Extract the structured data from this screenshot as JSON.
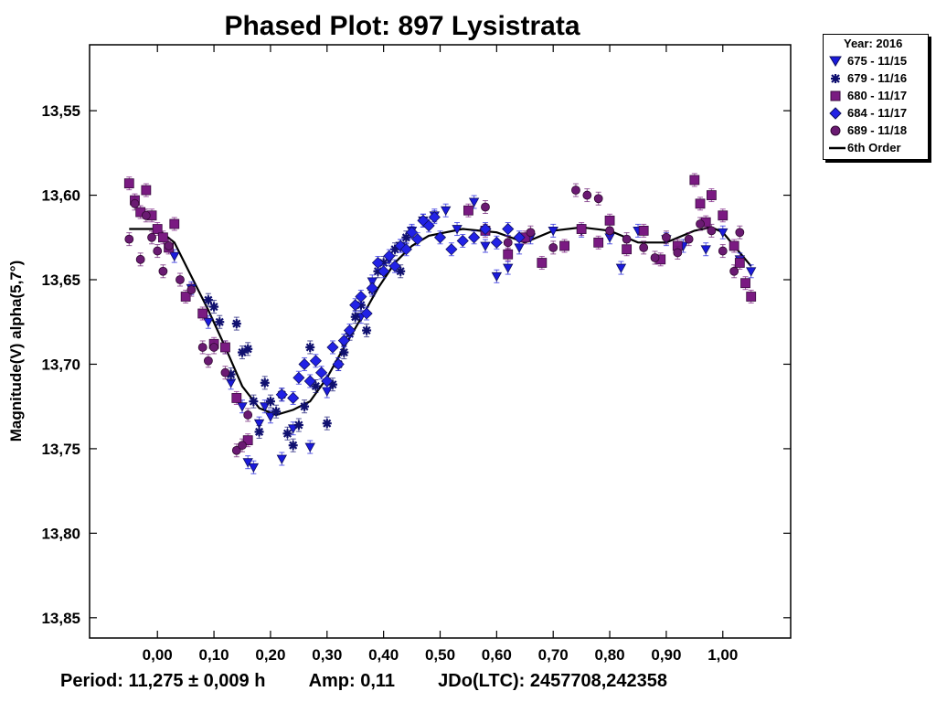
{
  "chart_data": {
    "type": "scatter",
    "title": "Phased Plot: 897 Lysistrata",
    "xlabel": "",
    "ylabel": "Magnitude(V) alpha(5,7°)",
    "xlim": [
      -0.12,
      1.12
    ],
    "ylim": [
      13.511,
      13.862
    ],
    "y_inverted": true,
    "x_ticks": [
      "0,00",
      "0,10",
      "0,20",
      "0,30",
      "0,40",
      "0,50",
      "0,60",
      "0,70",
      "0,80",
      "0,90",
      "1,00"
    ],
    "x_tick_values": [
      0,
      0.1,
      0.2,
      0.3,
      0.4,
      0.5,
      0.6,
      0.7,
      0.8,
      0.9,
      1.0
    ],
    "y_ticks": [
      "13,55",
      "13,60",
      "13,65",
      "13,70",
      "13,75",
      "13,80",
      "13,85"
    ],
    "y_tick_values": [
      13.55,
      13.6,
      13.65,
      13.7,
      13.75,
      13.8,
      13.85
    ],
    "legend": {
      "title": "Year: 2016",
      "entries": [
        {
          "label": "675 - 11/15",
          "marker": "triangle-down",
          "color": "#1a1adc"
        },
        {
          "label": "679 - 11/16",
          "marker": "asterisk",
          "color": "#101070"
        },
        {
          "label": "680 - 11/17",
          "marker": "square",
          "color": "#7a1a82"
        },
        {
          "label": "684 - 11/17",
          "marker": "diamond",
          "color": "#2222e6"
        },
        {
          "label": "689 - 11/18",
          "marker": "circle",
          "color": "#6a1a72"
        },
        {
          "label": "6th Order",
          "marker": "line",
          "color": "#000000"
        }
      ]
    },
    "series": [
      {
        "name": "675 - 11/15",
        "marker": "triangle-down",
        "color": "#1a1adc",
        "points": [
          [
            0.03,
            13.636
          ],
          [
            0.06,
            13.655
          ],
          [
            0.09,
            13.675
          ],
          [
            0.13,
            13.711
          ],
          [
            0.15,
            13.725
          ],
          [
            0.16,
            13.758
          ],
          [
            0.17,
            13.761
          ],
          [
            0.18,
            13.735
          ],
          [
            0.19,
            13.725
          ],
          [
            0.2,
            13.731
          ],
          [
            0.22,
            13.756
          ],
          [
            0.24,
            13.738
          ],
          [
            0.27,
            13.749
          ],
          [
            0.3,
            13.716
          ],
          [
            0.33,
            13.688
          ],
          [
            0.36,
            13.672
          ],
          [
            0.38,
            13.651
          ],
          [
            0.41,
            13.638
          ],
          [
            0.43,
            13.63
          ],
          [
            0.45,
            13.621
          ],
          [
            0.47,
            13.615
          ],
          [
            0.49,
            13.612
          ],
          [
            0.51,
            13.609
          ],
          [
            0.53,
            13.62
          ],
          [
            0.56,
            13.604
          ],
          [
            0.58,
            13.63
          ],
          [
            0.6,
            13.648
          ],
          [
            0.62,
            13.643
          ],
          [
            0.64,
            13.631
          ],
          [
            0.66,
            13.625
          ],
          [
            0.7,
            13.621
          ],
          [
            0.75,
            13.621
          ],
          [
            0.8,
            13.625
          ],
          [
            0.82,
            13.643
          ],
          [
            0.85,
            13.621
          ],
          [
            0.9,
            13.626
          ],
          [
            0.93,
            13.63
          ],
          [
            0.97,
            13.632
          ],
          [
            1.0,
            13.622
          ],
          [
            1.03,
            13.638
          ],
          [
            1.05,
            13.645
          ]
        ]
      },
      {
        "name": "679 - 11/16",
        "marker": "asterisk",
        "color": "#101070",
        "points": [
          [
            0.09,
            13.662
          ],
          [
            0.1,
            13.666
          ],
          [
            0.11,
            13.675
          ],
          [
            0.12,
            13.69
          ],
          [
            0.13,
            13.706
          ],
          [
            0.14,
            13.676
          ],
          [
            0.15,
            13.693
          ],
          [
            0.16,
            13.691
          ],
          [
            0.17,
            13.722
          ],
          [
            0.18,
            13.74
          ],
          [
            0.19,
            13.711
          ],
          [
            0.2,
            13.722
          ],
          [
            0.21,
            13.728
          ],
          [
            0.22,
            13.718
          ],
          [
            0.23,
            13.741
          ],
          [
            0.24,
            13.748
          ],
          [
            0.25,
            13.736
          ],
          [
            0.26,
            13.725
          ],
          [
            0.27,
            13.69
          ],
          [
            0.28,
            13.713
          ],
          [
            0.3,
            13.735
          ],
          [
            0.31,
            13.712
          ],
          [
            0.32,
            13.7
          ],
          [
            0.33,
            13.693
          ],
          [
            0.34,
            13.682
          ],
          [
            0.35,
            13.672
          ],
          [
            0.36,
            13.665
          ],
          [
            0.37,
            13.68
          ],
          [
            0.38,
            13.656
          ],
          [
            0.39,
            13.645
          ],
          [
            0.4,
            13.64
          ],
          [
            0.42,
            13.632
          ],
          [
            0.43,
            13.645
          ],
          [
            0.44,
            13.625
          ]
        ]
      },
      {
        "name": "680 - 11/17",
        "marker": "square",
        "color": "#7a1a82",
        "points": [
          [
            -0.05,
            13.593
          ],
          [
            -0.04,
            13.603
          ],
          [
            -0.03,
            13.61
          ],
          [
            -0.02,
            13.597
          ],
          [
            -0.01,
            13.612
          ],
          [
            0.0,
            13.62
          ],
          [
            0.01,
            13.625
          ],
          [
            0.02,
            13.631
          ],
          [
            0.03,
            13.617
          ],
          [
            0.05,
            13.66
          ],
          [
            0.08,
            13.67
          ],
          [
            0.1,
            13.688
          ],
          [
            0.12,
            13.69
          ],
          [
            0.14,
            13.72
          ],
          [
            0.16,
            13.745
          ],
          [
            0.55,
            13.609
          ],
          [
            0.58,
            13.621
          ],
          [
            0.62,
            13.635
          ],
          [
            0.65,
            13.625
          ],
          [
            0.68,
            13.64
          ],
          [
            0.72,
            13.63
          ],
          [
            0.75,
            13.62
          ],
          [
            0.78,
            13.628
          ],
          [
            0.8,
            13.615
          ],
          [
            0.83,
            13.632
          ],
          [
            0.86,
            13.621
          ],
          [
            0.89,
            13.638
          ],
          [
            0.92,
            13.63
          ],
          [
            0.95,
            13.591
          ],
          [
            0.96,
            13.605
          ],
          [
            0.97,
            13.616
          ],
          [
            0.98,
            13.6
          ],
          [
            1.0,
            13.612
          ],
          [
            1.02,
            13.63
          ],
          [
            1.03,
            13.64
          ],
          [
            1.04,
            13.652
          ],
          [
            1.05,
            13.66
          ]
        ]
      },
      {
        "name": "684 - 11/17",
        "marker": "diamond",
        "color": "#2222e6",
        "points": [
          [
            0.22,
            13.718
          ],
          [
            0.24,
            13.72
          ],
          [
            0.25,
            13.708
          ],
          [
            0.26,
            13.7
          ],
          [
            0.27,
            13.71
          ],
          [
            0.28,
            13.698
          ],
          [
            0.29,
            13.705
          ],
          [
            0.3,
            13.71
          ],
          [
            0.31,
            13.69
          ],
          [
            0.32,
            13.7
          ],
          [
            0.33,
            13.686
          ],
          [
            0.34,
            13.68
          ],
          [
            0.35,
            13.665
          ],
          [
            0.36,
            13.66
          ],
          [
            0.37,
            13.67
          ],
          [
            0.38,
            13.655
          ],
          [
            0.39,
            13.64
          ],
          [
            0.4,
            13.645
          ],
          [
            0.41,
            13.636
          ],
          [
            0.42,
            13.642
          ],
          [
            0.43,
            13.63
          ],
          [
            0.44,
            13.632
          ],
          [
            0.45,
            13.622
          ],
          [
            0.46,
            13.626
          ],
          [
            0.47,
            13.615
          ],
          [
            0.48,
            13.618
          ],
          [
            0.49,
            13.613
          ],
          [
            0.5,
            13.625
          ],
          [
            0.52,
            13.632
          ],
          [
            0.54,
            13.627
          ],
          [
            0.56,
            13.625
          ],
          [
            0.58,
            13.62
          ],
          [
            0.6,
            13.628
          ],
          [
            0.62,
            13.62
          ],
          [
            0.64,
            13.625
          ]
        ]
      },
      {
        "name": "689 - 11/18",
        "marker": "circle",
        "color": "#6a1a72",
        "points": [
          [
            -0.05,
            13.626
          ],
          [
            -0.04,
            13.605
          ],
          [
            -0.03,
            13.638
          ],
          [
            -0.02,
            13.612
          ],
          [
            -0.01,
            13.625
          ],
          [
            0.0,
            13.633
          ],
          [
            0.01,
            13.645
          ],
          [
            0.02,
            13.63
          ],
          [
            0.04,
            13.65
          ],
          [
            0.06,
            13.656
          ],
          [
            0.08,
            13.69
          ],
          [
            0.09,
            13.698
          ],
          [
            0.1,
            13.69
          ],
          [
            0.12,
            13.705
          ],
          [
            0.14,
            13.751
          ],
          [
            0.15,
            13.748
          ],
          [
            0.16,
            13.73
          ],
          [
            0.58,
            13.607
          ],
          [
            0.62,
            13.628
          ],
          [
            0.66,
            13.622
          ],
          [
            0.7,
            13.631
          ],
          [
            0.74,
            13.597
          ],
          [
            0.76,
            13.6
          ],
          [
            0.78,
            13.602
          ],
          [
            0.8,
            13.621
          ],
          [
            0.83,
            13.626
          ],
          [
            0.86,
            13.631
          ],
          [
            0.88,
            13.637
          ],
          [
            0.9,
            13.625
          ],
          [
            0.92,
            13.634
          ],
          [
            0.94,
            13.626
          ],
          [
            0.96,
            13.617
          ],
          [
            0.98,
            13.621
          ],
          [
            1.0,
            13.633
          ],
          [
            1.02,
            13.645
          ],
          [
            1.03,
            13.622
          ]
        ]
      }
    ],
    "fit": {
      "name": "6th Order",
      "x": [
        -0.05,
        0.0,
        0.03,
        0.06,
        0.09,
        0.12,
        0.15,
        0.18,
        0.21,
        0.24,
        0.27,
        0.3,
        0.33,
        0.36,
        0.39,
        0.42,
        0.45,
        0.48,
        0.51,
        0.54,
        0.57,
        0.6,
        0.65,
        0.7,
        0.75,
        0.8,
        0.85,
        0.9,
        0.95,
        0.98,
        1.0,
        1.02,
        1.05
      ],
      "y": [
        13.62,
        13.62,
        13.628,
        13.648,
        13.668,
        13.69,
        13.713,
        13.726,
        13.73,
        13.727,
        13.722,
        13.708,
        13.69,
        13.673,
        13.655,
        13.64,
        13.63,
        13.624,
        13.622,
        13.62,
        13.621,
        13.622,
        13.628,
        13.621,
        13.619,
        13.621,
        13.628,
        13.628,
        13.621,
        13.619,
        13.622,
        13.63,
        13.642
      ]
    }
  },
  "footer": {
    "period": "Period: 11,275 ± 0,009 h",
    "amp": "Amp: 0,11",
    "jdo": "JDo(LTC): 2457708,242358"
  }
}
